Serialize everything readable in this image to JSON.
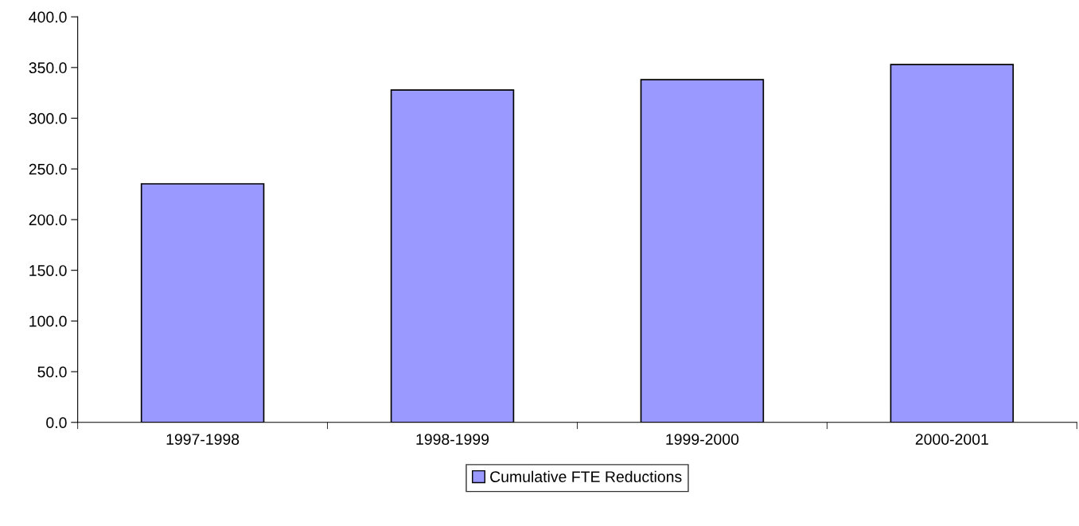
{
  "chart_data": {
    "type": "bar",
    "categories": [
      "1997-1998",
      "1998-1999",
      "1999-2000",
      "2000-2001"
    ],
    "series": [
      {
        "name": "Cumulative FTE Reductions",
        "color": "#9999ff",
        "values": [
          235.3,
          327.8,
          338.0,
          352.9
        ]
      }
    ],
    "ylim": [
      0,
      400
    ],
    "yticks": [
      {
        "value": 0,
        "label": "0.0"
      },
      {
        "value": 50,
        "label": "50.0"
      },
      {
        "value": 100,
        "label": "100.0"
      },
      {
        "value": 150,
        "label": "150.0"
      },
      {
        "value": 200,
        "label": "200.0"
      },
      {
        "value": 250,
        "label": "250.0"
      },
      {
        "value": 300,
        "label": "300.0"
      },
      {
        "value": 350,
        "label": "350.0"
      },
      {
        "value": 400,
        "label": "400.0"
      }
    ],
    "grid": false,
    "legend": "bottom"
  }
}
